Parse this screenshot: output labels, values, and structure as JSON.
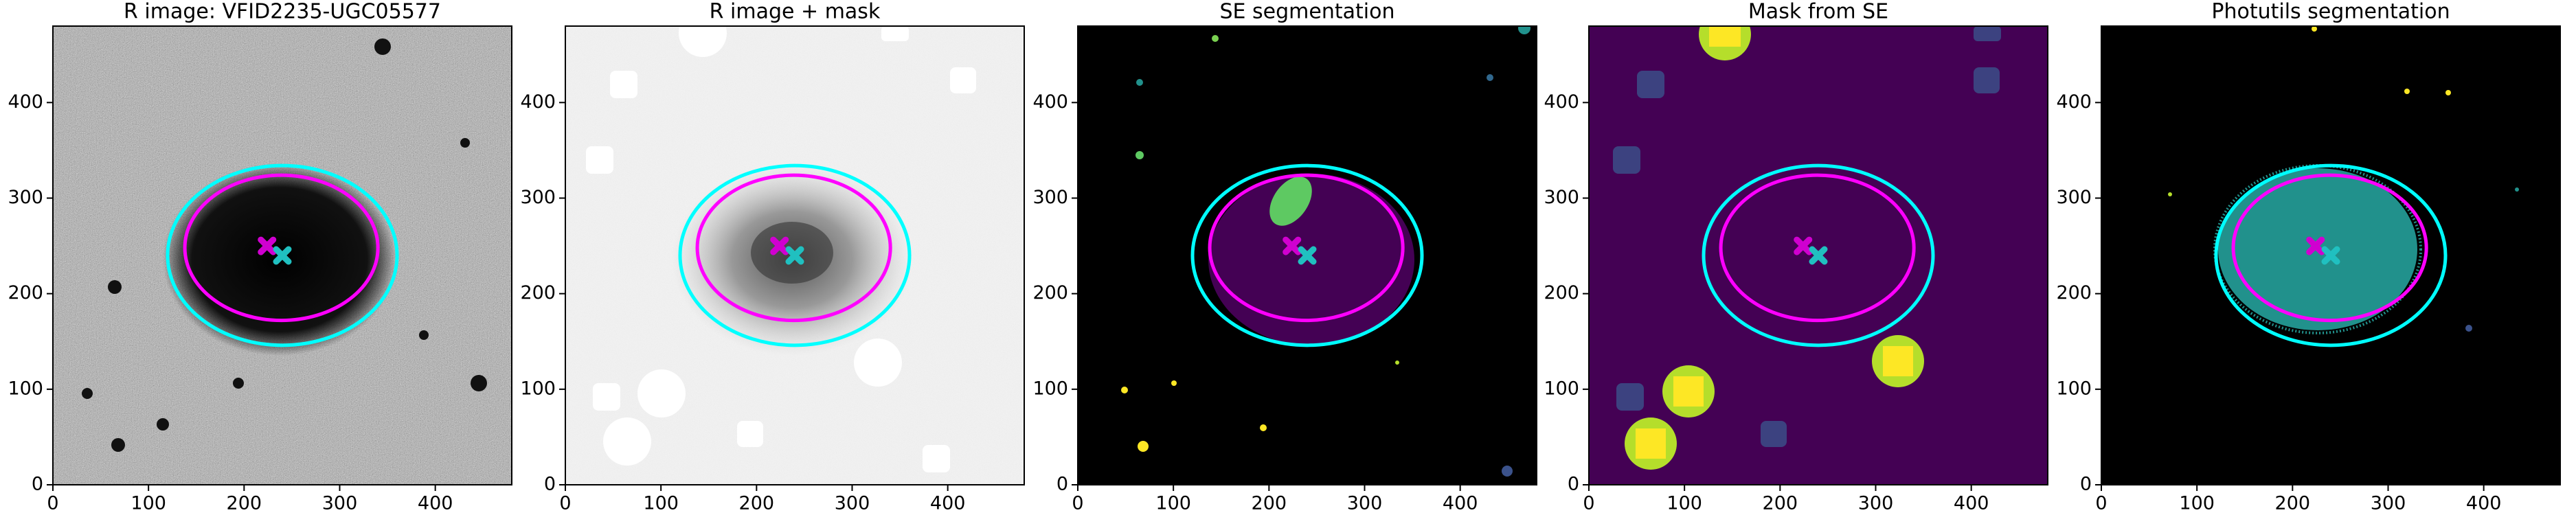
{
  "chart_data": [
    {
      "type": "image",
      "title": "R image: VFID2235-UGC05577",
      "xlim": [
        0,
        480
      ],
      "ylim": [
        0,
        480
      ],
      "xticks": [
        0,
        100,
        200,
        300,
        400
      ],
      "yticks": [
        0,
        100,
        200,
        300,
        400
      ],
      "ellipses": [
        {
          "cx": 240,
          "cy": 240,
          "rx": 120,
          "ry": 94,
          "color": "#00ffff"
        },
        {
          "cx": 239,
          "cy": 248,
          "rx": 101,
          "ry": 76,
          "color": "#ff00ff"
        }
      ],
      "markers": [
        {
          "x": 224,
          "y": 250,
          "color": "#d000d0"
        },
        {
          "x": 240,
          "y": 240,
          "color": "#20c0c0"
        }
      ]
    },
    {
      "type": "image",
      "title": "R image + mask",
      "xlim": [
        0,
        480
      ],
      "ylim": [
        0,
        480
      ],
      "xticks": [
        0,
        100,
        200,
        300,
        400
      ],
      "yticks": [
        0,
        100,
        200,
        300,
        400
      ],
      "ellipses": [
        {
          "cx": 240,
          "cy": 240,
          "rx": 120,
          "ry": 94,
          "color": "#00ffff"
        },
        {
          "cx": 239,
          "cy": 248,
          "rx": 101,
          "ry": 76,
          "color": "#ff00ff"
        }
      ],
      "markers": [
        {
          "x": 224,
          "y": 250,
          "color": "#d000d0"
        },
        {
          "x": 240,
          "y": 240,
          "color": "#20c0c0"
        }
      ]
    },
    {
      "type": "image",
      "title": "SE segmentation",
      "xlim": [
        0,
        480
      ],
      "ylim": [
        0,
        480
      ],
      "xticks": [
        0,
        100,
        200,
        300,
        400
      ],
      "yticks": [
        0,
        100,
        200,
        300,
        400
      ],
      "ellipses": [
        {
          "cx": 240,
          "cy": 240,
          "rx": 120,
          "ry": 94,
          "color": "#00ffff"
        },
        {
          "cx": 239,
          "cy": 248,
          "rx": 101,
          "ry": 76,
          "color": "#ff00ff"
        }
      ],
      "markers": [
        {
          "x": 224,
          "y": 250,
          "color": "#d000d0"
        },
        {
          "x": 240,
          "y": 240,
          "color": "#20c0c0"
        }
      ]
    },
    {
      "type": "image",
      "title": "Mask from SE",
      "xlim": [
        0,
        480
      ],
      "ylim": [
        0,
        480
      ],
      "xticks": [
        0,
        100,
        200,
        300,
        400
      ],
      "yticks": [
        0,
        100,
        200,
        300,
        400
      ],
      "ellipses": [
        {
          "cx": 240,
          "cy": 240,
          "rx": 120,
          "ry": 94,
          "color": "#00ffff"
        },
        {
          "cx": 239,
          "cy": 248,
          "rx": 101,
          "ry": 76,
          "color": "#ff00ff"
        }
      ],
      "markers": [
        {
          "x": 224,
          "y": 250,
          "color": "#d000d0"
        },
        {
          "x": 240,
          "y": 240,
          "color": "#20c0c0"
        }
      ]
    },
    {
      "type": "image",
      "title": "Photutils segmentation",
      "xlim": [
        0,
        480
      ],
      "ylim": [
        0,
        480
      ],
      "xticks": [
        0,
        100,
        200,
        300,
        400
      ],
      "yticks": [
        0,
        100,
        200,
        300,
        400
      ],
      "ellipses": [
        {
          "cx": 240,
          "cy": 240,
          "rx": 120,
          "ry": 94,
          "color": "#00ffff"
        },
        {
          "cx": 239,
          "cy": 248,
          "rx": 101,
          "ry": 76,
          "color": "#ff00ff"
        }
      ],
      "markers": [
        {
          "x": 224,
          "y": 250,
          "color": "#d000d0"
        },
        {
          "x": 240,
          "y": 240,
          "color": "#20c0c0"
        }
      ]
    }
  ]
}
